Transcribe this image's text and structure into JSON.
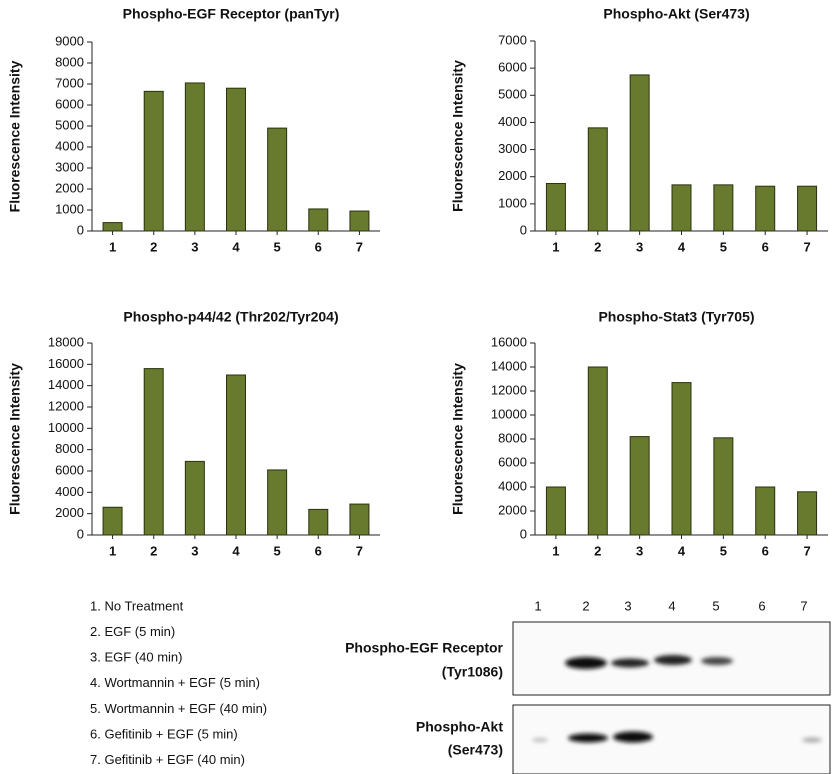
{
  "chart_data": [
    {
      "type": "bar",
      "title": "Phospho-EGF Receptor (panTyr)",
      "ylabel": "Fluorescence Intensity",
      "categories": [
        "1",
        "2",
        "3",
        "4",
        "5",
        "6",
        "7"
      ],
      "values": [
        400,
        6650,
        7050,
        6800,
        4900,
        1050,
        950
      ],
      "color": "#677a2d",
      "ylim": [
        0,
        9000
      ],
      "yticks": [
        0,
        1000,
        2000,
        3000,
        4000,
        5000,
        6000,
        7000,
        8000,
        9000
      ]
    },
    {
      "type": "bar",
      "title": "Phospho-Akt (Ser473)",
      "ylabel": "Fluorescence Intensity",
      "categories": [
        "1",
        "2",
        "3",
        "4",
        "5",
        "6",
        "7"
      ],
      "values": [
        1750,
        3800,
        5750,
        1700,
        1700,
        1650,
        1650
      ],
      "color": "#677a2d",
      "ylim": [
        0,
        7000
      ],
      "yticks": [
        0,
        1000,
        2000,
        3000,
        4000,
        5000,
        6000,
        7000
      ]
    },
    {
      "type": "bar",
      "title": "Phospho-p44/42 (Thr202/Tyr204)",
      "ylabel": "Fluorescence Intensity",
      "categories": [
        "1",
        "2",
        "3",
        "4",
        "5",
        "6",
        "7"
      ],
      "values": [
        2600,
        15600,
        6900,
        15000,
        6100,
        2400,
        2900
      ],
      "color": "#677a2d",
      "ylim": [
        0,
        18000
      ],
      "yticks": [
        0,
        2000,
        4000,
        6000,
        8000,
        10000,
        12000,
        14000,
        16000,
        18000
      ]
    },
    {
      "type": "bar",
      "title": "Phospho-Stat3 (Tyr705)",
      "ylabel": "Fluorescence Intensity",
      "categories": [
        "1",
        "2",
        "3",
        "4",
        "5",
        "6",
        "7"
      ],
      "values": [
        4000,
        14000,
        8200,
        12700,
        8100,
        4000,
        3600
      ],
      "color": "#677a2d",
      "ylim": [
        0,
        16000
      ],
      "yticks": [
        0,
        2000,
        4000,
        6000,
        8000,
        10000,
        12000,
        14000,
        16000
      ]
    }
  ],
  "treatments": [
    "1. No Treatment",
    "2. EGF (5 min)",
    "3. EGF (40 min)",
    "4. Wortmannin + EGF (5 min)",
    "5. Wortmannin + EGF (40 min)",
    "6. Gefitinib + EGF (5 min)",
    "7. Gefitinib + EGF (40 min)"
  ],
  "blot": {
    "lanes": [
      "1",
      "2",
      "3",
      "4",
      "5",
      "6",
      "7"
    ],
    "rows": [
      [
        "Phospho-EGF Receptor",
        "(Tyr1086)"
      ],
      [
        "Phospho-Akt",
        "(Ser473)"
      ]
    ]
  }
}
